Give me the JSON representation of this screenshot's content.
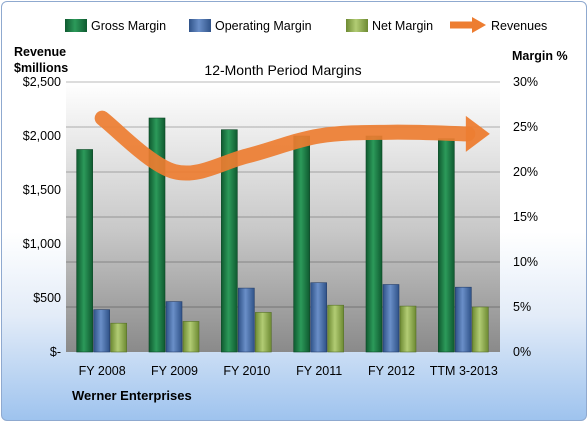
{
  "company": "Werner Enterprises",
  "colors": {
    "gross": "#1e7a45",
    "operating": "#4a6fa8",
    "net": "#8faa4e",
    "revenue": "#ed7d31"
  },
  "chart_data": {
    "type": "bar",
    "title": "12-Month Period Margins",
    "categories": [
      "FY 2008",
      "FY 2009",
      "FY 2010",
      "FY 2011",
      "FY 2012",
      "TTM 3-2013"
    ],
    "series": [
      {
        "name": "Gross Margin",
        "axis": "right",
        "values": [
          22.5,
          26.0,
          24.7,
          24.0,
          24.0,
          23.7
        ]
      },
      {
        "name": "Operating Margin",
        "axis": "right",
        "values": [
          4.7,
          5.6,
          7.1,
          7.7,
          7.5,
          7.2
        ]
      },
      {
        "name": "Net Margin",
        "axis": "right",
        "values": [
          3.2,
          3.4,
          4.4,
          5.2,
          5.1,
          5.0
        ]
      },
      {
        "name": "Revenues",
        "type": "line",
        "axis": "left",
        "values": [
          2165,
          1670,
          1815,
          2000,
          2035,
          2020
        ]
      }
    ],
    "y_left": {
      "label_line1": "Revenue",
      "label_line2": "$millions",
      "range": [
        0,
        2500
      ],
      "ticks": [
        0,
        500,
        1000,
        1500,
        2000,
        2500
      ],
      "tick_labels": [
        "$-",
        "$500",
        "$1,000",
        "$1,500",
        "$2,000",
        "$2,500"
      ]
    },
    "y_right": {
      "label": "Margin %",
      "range": [
        0,
        30
      ],
      "ticks": [
        0,
        5,
        10,
        15,
        20,
        25,
        30
      ],
      "tick_labels": [
        "0%",
        "5%",
        "10%",
        "15%",
        "20%",
        "25%",
        "30%"
      ]
    },
    "grid": true,
    "legend_position": "top"
  }
}
